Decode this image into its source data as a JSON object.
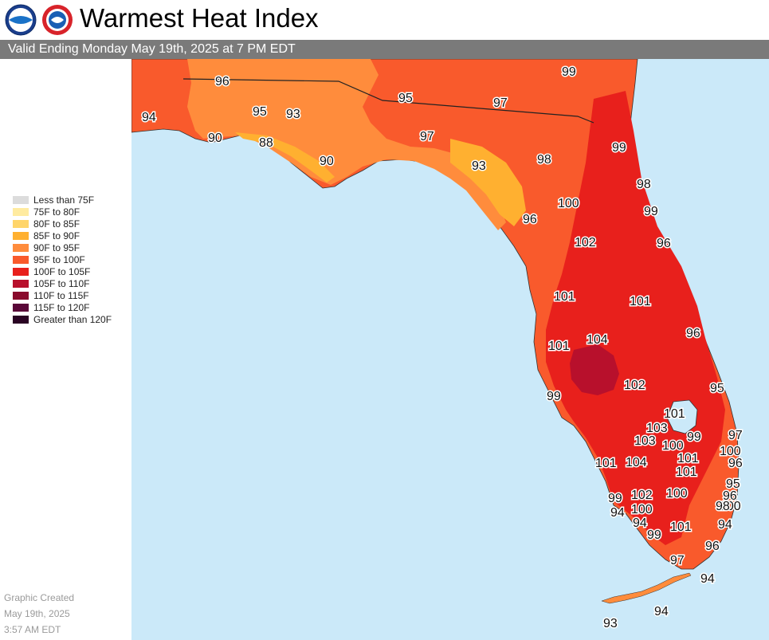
{
  "header": {
    "title": "Warmest Heat Index",
    "logo_left": "noaa-logo",
    "logo_right": "nws-logo",
    "valid": "Valid Ending Monday May 19th, 2025 at 7 PM EDT"
  },
  "legend": [
    {
      "label": "Less than 75F",
      "color": "#dcdcdc"
    },
    {
      "label": "75F to 80F",
      "color": "#ffeba0"
    },
    {
      "label": "80F to 85F",
      "color": "#ffd56a"
    },
    {
      "label": "85F to 90F",
      "color": "#ffb030"
    },
    {
      "label": "90F to 95F",
      "color": "#ff8c3c"
    },
    {
      "label": "95F to 100F",
      "color": "#f95a2c"
    },
    {
      "label": "100F to 105F",
      "color": "#e8201c"
    },
    {
      "label": "105F to 110F",
      "color": "#b8102c"
    },
    {
      "label": "110F to 115F",
      "color": "#8a0a2c"
    },
    {
      "label": "115F to 120F",
      "color": "#5a0838"
    },
    {
      "label": "Greater than 120F",
      "color": "#2a0424"
    }
  ],
  "credit": {
    "line1": "Graphic Created",
    "line2": "May 19th, 2025",
    "line3": "3:57 AM EDT"
  },
  "map_labels": [
    "96",
    "99",
    "95",
    "97",
    "94",
    "95",
    "93",
    "90",
    "88",
    "97",
    "90",
    "93",
    "98",
    "99",
    "98",
    "100",
    "99",
    "96",
    "102",
    "96",
    "101",
    "101",
    "96",
    "101",
    "104",
    "99",
    "102",
    "95",
    "101",
    "103",
    "101",
    "103",
    "100",
    "99",
    "97",
    "100",
    "101",
    "104",
    "100",
    "96",
    "101",
    "95",
    "102",
    "100",
    "99",
    "96",
    "94",
    "100",
    "98",
    "94",
    "94",
    "99",
    "101",
    "96",
    "97",
    "94",
    "94",
    "93"
  ]
}
